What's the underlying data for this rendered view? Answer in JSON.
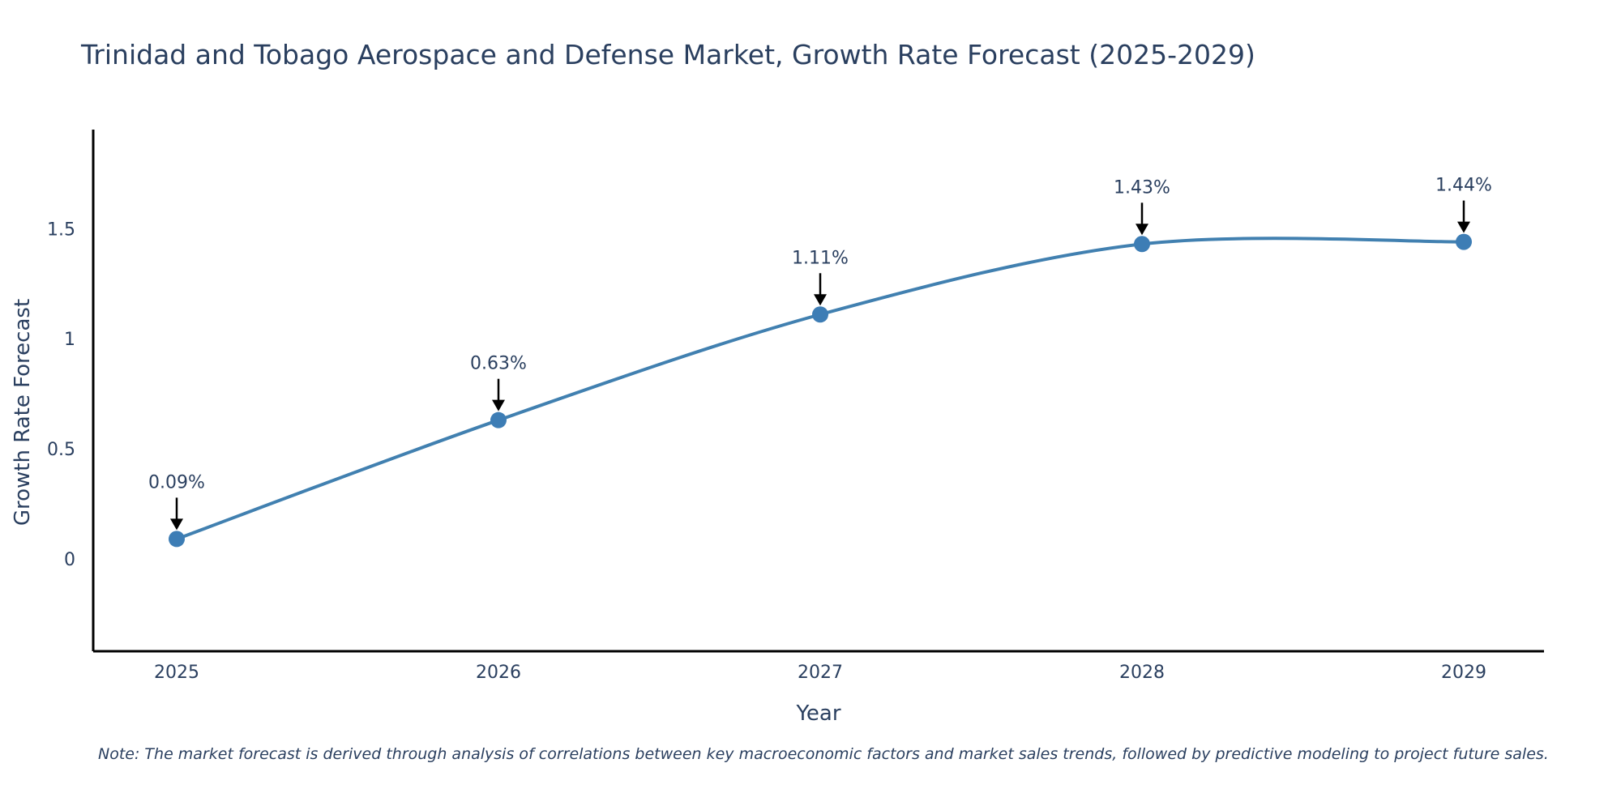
{
  "chart_data": {
    "type": "line",
    "title": "Trinidad and Tobago Aerospace and Defense Market, Growth Rate Forecast (2025-2029)",
    "xlabel": "Year",
    "ylabel": "Growth Rate Forecast",
    "categories": [
      "2025",
      "2026",
      "2027",
      "2028",
      "2029"
    ],
    "series": [
      {
        "name": "Growth Rate Forecast",
        "values": [
          0.09,
          0.63,
          1.11,
          1.43,
          1.44
        ]
      }
    ],
    "data_labels": [
      "0.09%",
      "0.63%",
      "1.11%",
      "1.43%",
      "1.44%"
    ],
    "ylim": [
      -0.42,
      1.95
    ],
    "yticks": [
      0,
      0.5,
      1,
      1.5
    ],
    "ytick_labels": [
      "0",
      "0.5",
      "1",
      "1.5"
    ],
    "grid": false,
    "line_color": "#4180b0",
    "marker_color": "#3d7db5",
    "note": "Note: The market forecast is derived through analysis of correlations between key macroeconomic factors and market sales trends, followed by predictive modeling to project future sales."
  }
}
